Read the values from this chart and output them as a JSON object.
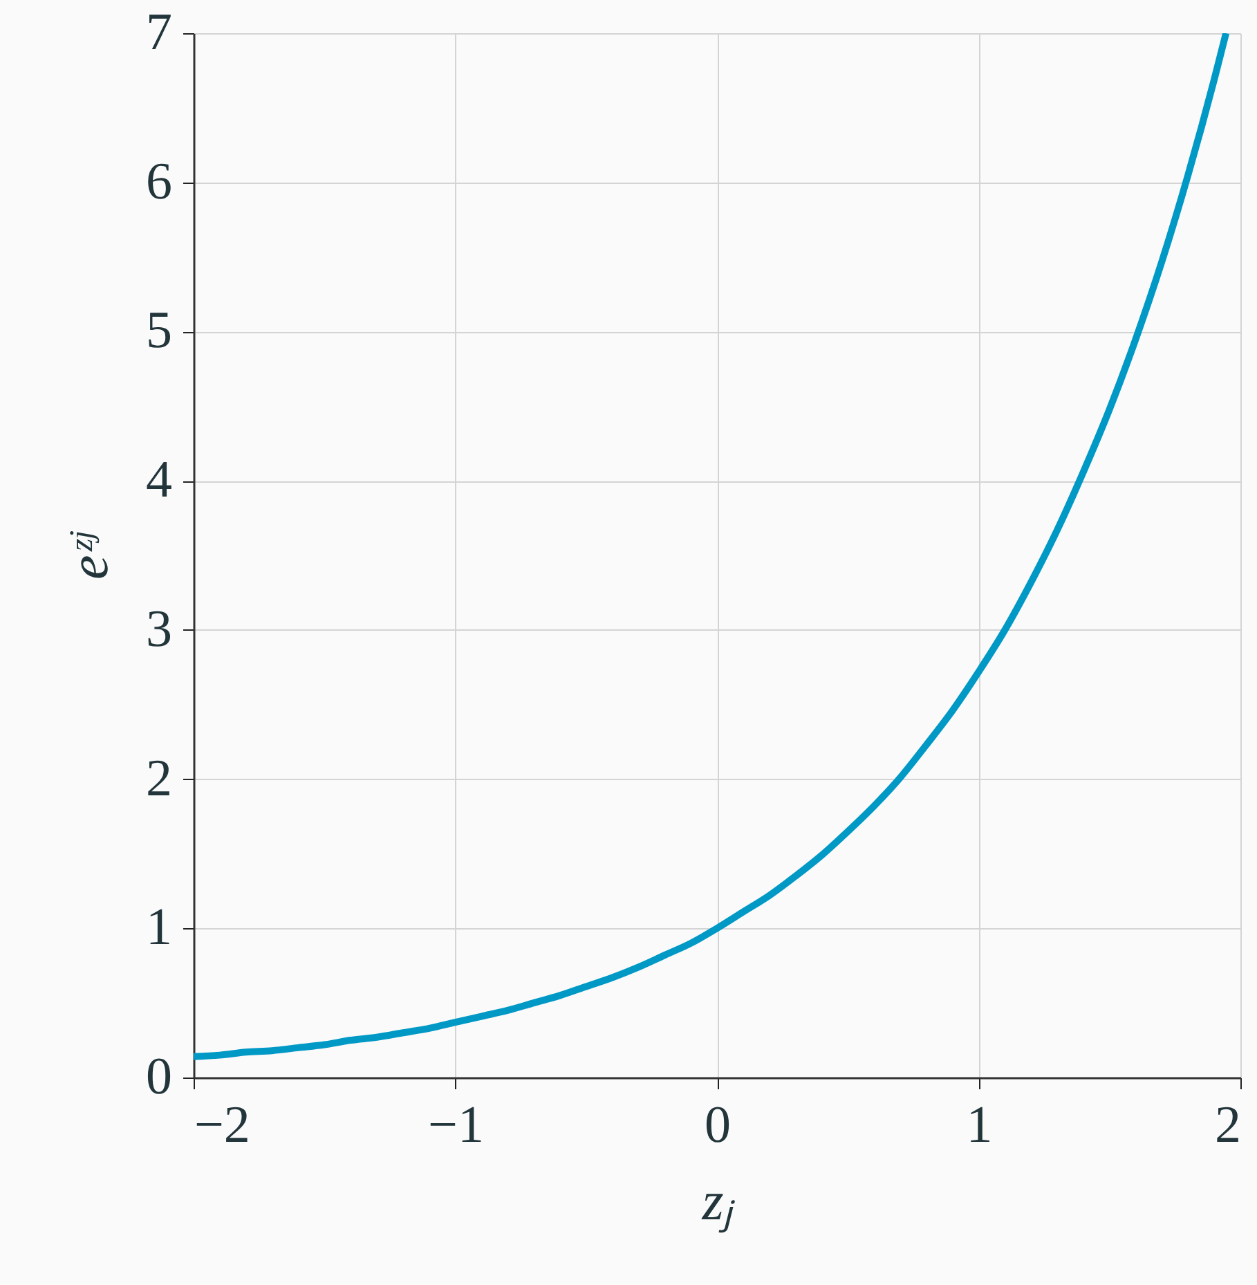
{
  "chart_data": {
    "type": "line",
    "xlabel": "zⱼ",
    "ylabel": "eᶻʲ",
    "x": [
      -2,
      -1.9,
      -1.8,
      -1.7,
      -1.6,
      -1.5,
      -1.4,
      -1.3,
      -1.2,
      -1.1,
      -1.0,
      -0.9,
      -0.8,
      -0.7,
      -0.6,
      -0.5,
      -0.4,
      -0.3,
      -0.2,
      -0.1,
      0,
      0.1,
      0.2,
      0.3,
      0.4,
      0.5,
      0.6,
      0.7,
      0.8,
      0.9,
      1.0,
      1.1,
      1.2,
      1.3,
      1.4,
      1.5,
      1.6,
      1.7,
      1.8,
      1.9,
      1.945
    ],
    "series": [
      {
        "color": "#0099c6",
        "values": [
          0.14,
          0.15,
          0.17,
          0.18,
          0.2,
          0.22,
          0.25,
          0.27,
          0.3,
          0.33,
          0.37,
          0.41,
          0.45,
          0.5,
          0.55,
          0.61,
          0.67,
          0.74,
          0.82,
          0.9,
          1.0,
          1.11,
          1.22,
          1.35,
          1.49,
          1.65,
          1.82,
          2.01,
          2.23,
          2.46,
          2.72,
          3.0,
          3.32,
          3.67,
          4.06,
          4.48,
          4.95,
          5.47,
          6.05,
          6.69,
          7.0
        ]
      }
    ],
    "xlim": [
      -2,
      2
    ],
    "xticks": [
      -2,
      -1,
      0,
      1,
      2
    ],
    "ylim": [
      0,
      7
    ],
    "yticks": [
      0,
      1,
      2,
      3,
      4,
      5,
      6,
      7
    ],
    "grid": true,
    "marker": "none",
    "line_style": "solid"
  }
}
